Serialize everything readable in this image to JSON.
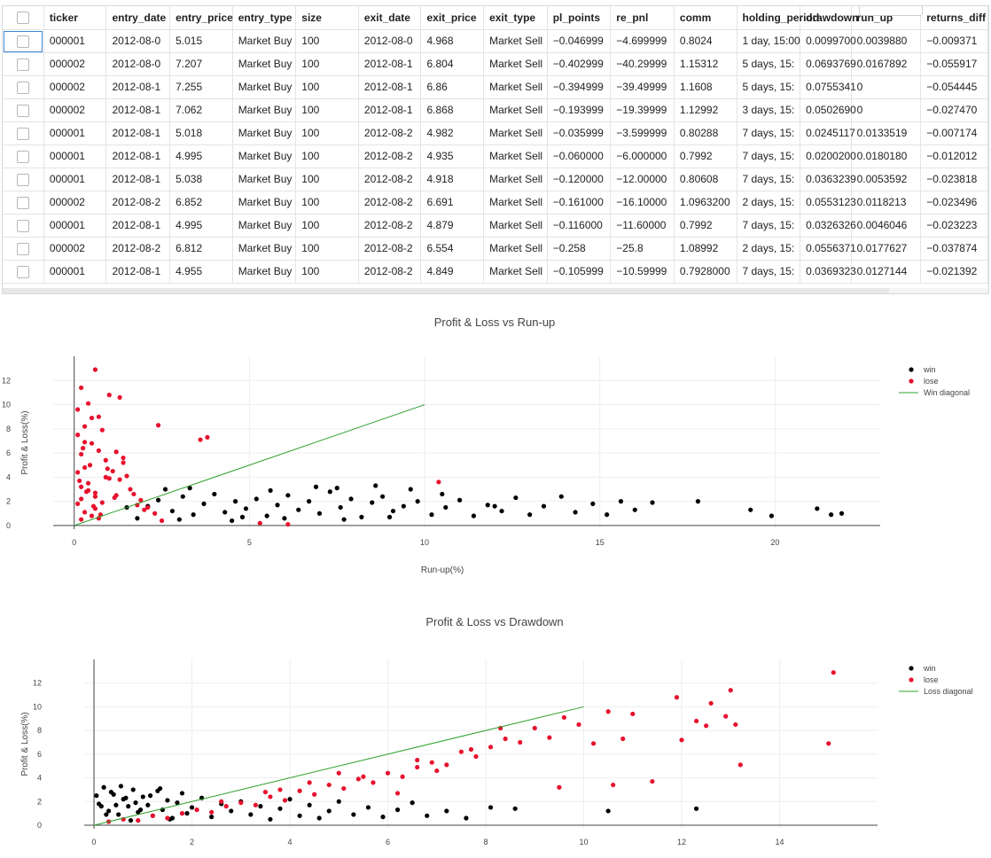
{
  "table": {
    "columns": [
      "ticker",
      "entry_date",
      "entry_price",
      "entry_type",
      "size",
      "exit_date",
      "exit_price",
      "exit_type",
      "pl_points",
      "re_pnl",
      "comm",
      "holding_period",
      "drawdown",
      "run_up",
      "returns_diff"
    ],
    "rows": [
      [
        "000001",
        "2012-08-0",
        "5.015",
        "Market Buy",
        "100",
        "2012-08-0",
        "4.968",
        "Market Sell",
        "−0.046999",
        "−4.699999",
        "0.8024",
        "1 day, 15:00",
        "0.0099700",
        "0.0039880",
        "−0.009371"
      ],
      [
        "000002",
        "2012-08-0",
        "7.207",
        "Market Buy",
        "100",
        "2012-08-1",
        "6.804",
        "Market Sell",
        "−0.402999",
        "−40.29999",
        "1.15312",
        "5 days, 15:",
        "0.0693769",
        "0.0167892",
        "−0.055917"
      ],
      [
        "000002",
        "2012-08-1",
        "7.255",
        "Market Buy",
        "100",
        "2012-08-1",
        "6.86",
        "Market Sell",
        "−0.394999",
        "−39.49999",
        "1.1608",
        "5 days, 15:",
        "0.0755341",
        "0",
        "−0.054445"
      ],
      [
        "000002",
        "2012-08-1",
        "7.062",
        "Market Buy",
        "100",
        "2012-08-1",
        "6.868",
        "Market Sell",
        "−0.193999",
        "−19.39999",
        "1.12992",
        "3 days, 15:",
        "0.0502690",
        "0",
        "−0.027470"
      ],
      [
        "000001",
        "2012-08-1",
        "5.018",
        "Market Buy",
        "100",
        "2012-08-2",
        "4.982",
        "Market Sell",
        "−0.035999",
        "−3.599999",
        "0.80288",
        "7 days, 15:",
        "0.0245117",
        "0.0133519",
        "−0.007174"
      ],
      [
        "000001",
        "2012-08-1",
        "4.995",
        "Market Buy",
        "100",
        "2012-08-2",
        "4.935",
        "Market Sell",
        "−0.060000",
        "−6.000000",
        "0.7992",
        "7 days, 15:",
        "0.0200200",
        "0.0180180",
        "−0.012012"
      ],
      [
        "000001",
        "2012-08-1",
        "5.038",
        "Market Buy",
        "100",
        "2012-08-2",
        "4.918",
        "Market Sell",
        "−0.120000",
        "−12.00000",
        "0.80608",
        "7 days, 15:",
        "0.0363239",
        "0.0053592",
        "−0.023818"
      ],
      [
        "000002",
        "2012-08-2",
        "6.852",
        "Market Buy",
        "100",
        "2012-08-2",
        "6.691",
        "Market Sell",
        "−0.161000",
        "−16.10000",
        "1.0963200",
        "2 days, 15:",
        "0.0553123",
        "0.0118213",
        "−0.023496"
      ],
      [
        "000001",
        "2012-08-1",
        "4.995",
        "Market Buy",
        "100",
        "2012-08-2",
        "4.879",
        "Market Sell",
        "−0.116000",
        "−11.60000",
        "0.7992",
        "7 days, 15:",
        "0.0326326",
        "0.0046046",
        "−0.023223"
      ],
      [
        "000002",
        "2012-08-2",
        "6.812",
        "Market Buy",
        "100",
        "2012-08-2",
        "6.554",
        "Market Sell",
        "−0.258",
        "−25.8",
        "1.08992",
        "2 days, 15:",
        "0.0556371",
        "0.0177627",
        "−0.037874"
      ],
      [
        "000001",
        "2012-08-1",
        "4.955",
        "Market Buy",
        "100",
        "2012-08-2",
        "4.849",
        "Market Sell",
        "−0.105999",
        "−10.59999",
        "0.7928000",
        "7 days, 15:",
        "0.0369323",
        "0.0127144",
        "−0.021392"
      ]
    ]
  },
  "chart_data": [
    {
      "type": "scatter",
      "title": "Profit & Loss vs Run-up",
      "xlabel": "Run-up(%)",
      "ylabel": "Profit & Loss(%)",
      "xlim": [
        -0.6,
        23
      ],
      "ylim": [
        -0.3,
        14
      ],
      "xticks": [
        0,
        5,
        10,
        15,
        20
      ],
      "yticks": [
        0,
        2,
        4,
        6,
        8,
        10,
        12
      ],
      "legend_position": "top-right",
      "series": [
        {
          "name": "win",
          "color": "#000000",
          "x": [
            2.1,
            2.4,
            2.8,
            3.1,
            3.4,
            3.7,
            4.0,
            4.3,
            4.6,
            4.9,
            5.2,
            5.5,
            5.8,
            6.1,
            6.4,
            6.7,
            7.0,
            7.3,
            7.6,
            7.9,
            8.2,
            8.5,
            8.8,
            9.1,
            9.4,
            9.8,
            10.2,
            10.6,
            11.0,
            11.4,
            11.8,
            12.2,
            12.6,
            13.0,
            13.4,
            13.9,
            14.3,
            14.8,
            15.2,
            15.6,
            16.0,
            16.5,
            17.8,
            19.3,
            19.9,
            21.2,
            21.6,
            21.9,
            1.5,
            1.8,
            2.6,
            3.3,
            4.8,
            5.6,
            6.9,
            7.7,
            8.6,
            9.6,
            3.0,
            4.5,
            6.0,
            7.5,
            9.0,
            10.5,
            12.0
          ],
          "y": [
            1.6,
            2.1,
            1.2,
            2.4,
            0.9,
            1.8,
            2.6,
            1.1,
            2.0,
            1.4,
            2.2,
            0.8,
            1.7,
            2.5,
            1.3,
            2.0,
            1.0,
            2.8,
            1.5,
            2.2,
            0.7,
            1.9,
            2.4,
            1.2,
            1.6,
            2.0,
            0.9,
            1.5,
            2.1,
            0.8,
            1.7,
            1.2,
            2.3,
            0.9,
            1.6,
            2.4,
            1.1,
            1.8,
            0.9,
            2.0,
            1.3,
            1.9,
            2.0,
            1.3,
            0.8,
            1.4,
            0.9,
            1.0,
            1.5,
            0.6,
            3.0,
            3.1,
            0.7,
            2.9,
            3.2,
            0.5,
            3.3,
            3.0,
            0.5,
            0.4,
            0.6,
            3.1,
            0.7,
            2.6,
            1.6
          ]
        },
        {
          "name": "lose",
          "color": "#e8112d",
          "x": [
            0.1,
            0.2,
            0.3,
            0.1,
            0.4,
            0.5,
            0.2,
            0.6,
            0.7,
            0.3,
            0.8,
            0.9,
            1.0,
            0.2,
            1.1,
            1.2,
            0.4,
            1.3,
            1.4,
            0.6,
            1.5,
            1.6,
            0.1,
            1.7,
            1.8,
            0.3,
            1.9,
            2.0,
            0.5,
            2.1,
            2.3,
            0.7,
            2.5,
            0.2,
            0.4,
            0.6,
            0.8,
            1.0,
            1.2,
            0.1,
            0.3,
            0.5,
            0.9,
            1.4,
            2.4,
            3.6,
            3.8,
            0.7,
            10.4,
            6.1,
            5.3,
            1.3,
            0.2,
            0.6,
            0.15,
            0.35,
            0.55,
            0.75,
            0.95,
            1.15,
            0.25,
            0.45
          ],
          "y": [
            9.6,
            11.4,
            8.2,
            7.5,
            10.1,
            6.8,
            5.9,
            12.9,
            6.2,
            4.8,
            7.9,
            5.4,
            10.8,
            3.2,
            4.5,
            6.1,
            2.9,
            3.8,
            5.2,
            2.4,
            4.1,
            3.0,
            1.8,
            2.6,
            1.7,
            1.1,
            2.1,
            1.3,
            0.8,
            1.5,
            1.0,
            0.6,
            0.4,
            2.2,
            3.5,
            2.7,
            1.9,
            3.9,
            2.5,
            4.4,
            6.9,
            8.9,
            4.0,
            5.6,
            8.3,
            7.1,
            7.3,
            9.0,
            3.6,
            0.1,
            0.2,
            10.6,
            0.5,
            1.4,
            3.7,
            2.8,
            1.6,
            0.9,
            4.7,
            2.3,
            6.4,
            5.0
          ]
        },
        {
          "name": "Win diagonal",
          "color": "#2ca02c",
          "mode": "line",
          "x": [
            0,
            10
          ],
          "y": [
            0,
            10
          ]
        }
      ]
    },
    {
      "type": "scatter",
      "title": "Profit & Loss vs Drawdown",
      "xlabel": "",
      "ylabel": "Profit & Loss(%)",
      "xlim": [
        -0.2,
        16
      ],
      "ylim": [
        -0.3,
        14
      ],
      "xticks": [
        0,
        2,
        4,
        6,
        8,
        10,
        12,
        14
      ],
      "yticks": [
        0,
        2,
        4,
        6,
        8,
        10,
        12
      ],
      "legend_position": "top-right",
      "series": [
        {
          "name": "win",
          "color": "#000000",
          "x": [
            0.05,
            0.1,
            0.2,
            0.3,
            0.4,
            0.5,
            0.6,
            0.7,
            0.8,
            0.9,
            1.0,
            1.1,
            1.2,
            1.3,
            1.4,
            1.5,
            1.6,
            1.7,
            1.8,
            1.9,
            2.0,
            2.2,
            2.4,
            2.6,
            2.8,
            3.0,
            3.2,
            3.4,
            3.6,
            3.8,
            4.0,
            4.2,
            4.4,
            4.6,
            4.8,
            5.0,
            5.3,
            5.6,
            5.9,
            6.2,
            6.5,
            6.8,
            7.2,
            7.6,
            8.1,
            8.6,
            10.5,
            12.3,
            0.15,
            0.35,
            0.55,
            0.75,
            0.95,
            1.15,
            1.35,
            1.55,
            0.25,
            0.45,
            0.65,
            0.85
          ],
          "y": [
            2.5,
            1.8,
            3.2,
            1.2,
            2.6,
            0.9,
            2.2,
            1.6,
            3.0,
            1.1,
            2.4,
            1.7,
            0.8,
            2.9,
            1.3,
            2.1,
            0.6,
            1.9,
            2.7,
            1.0,
            1.5,
            2.3,
            0.7,
            1.8,
            1.2,
            2.0,
            0.9,
            1.6,
            0.5,
            1.4,
            2.2,
            0.8,
            1.7,
            0.6,
            1.2,
            2.0,
            0.9,
            1.5,
            0.7,
            1.3,
            1.9,
            0.8,
            1.2,
            0.6,
            1.5,
            1.4,
            1.2,
            1.4,
            1.6,
            2.8,
            3.3,
            0.4,
            1.3,
            2.5,
            3.1,
            0.5,
            0.9,
            1.7,
            2.3,
            1.9
          ]
        },
        {
          "name": "lose",
          "color": "#e8112d",
          "x": [
            0.3,
            0.6,
            0.9,
            1.2,
            1.5,
            1.8,
            2.1,
            2.4,
            2.7,
            3.0,
            3.3,
            3.6,
            3.9,
            4.2,
            4.5,
            4.8,
            5.1,
            5.4,
            5.7,
            6.0,
            6.3,
            6.6,
            6.9,
            7.2,
            7.5,
            7.8,
            8.1,
            8.4,
            8.7,
            9.0,
            9.3,
            9.6,
            9.9,
            10.2,
            10.5,
            10.8,
            11.0,
            11.9,
            12.0,
            12.3,
            12.6,
            12.9,
            13.1,
            13.2,
            15.0,
            15.1,
            8.3,
            7.0,
            5.5,
            4.4,
            3.5,
            2.6,
            6.6,
            7.7,
            9.5,
            10.6,
            11.4,
            12.5,
            13.0,
            3.8,
            5.0,
            6.2
          ],
          "y": [
            0.3,
            0.5,
            0.4,
            0.8,
            0.6,
            1.0,
            1.3,
            1.1,
            1.6,
            1.9,
            1.7,
            2.4,
            2.1,
            2.9,
            2.6,
            3.4,
            3.1,
            3.9,
            3.6,
            4.4,
            4.1,
            4.9,
            5.3,
            5.1,
            6.2,
            5.8,
            6.6,
            7.3,
            7.0,
            8.2,
            7.4,
            9.1,
            8.5,
            6.9,
            9.6,
            7.3,
            9.4,
            10.8,
            7.2,
            8.8,
            10.3,
            9.2,
            8.5,
            5.1,
            6.9,
            12.9,
            8.2,
            4.6,
            4.1,
            3.6,
            2.8,
            2.0,
            5.5,
            6.4,
            3.2,
            3.4,
            3.7,
            8.4,
            11.4,
            3.0,
            4.4,
            2.7
          ]
        },
        {
          "name": "Loss diagonal",
          "color": "#2ca02c",
          "mode": "line",
          "x": [
            0,
            10
          ],
          "y": [
            0,
            10
          ]
        }
      ]
    }
  ]
}
